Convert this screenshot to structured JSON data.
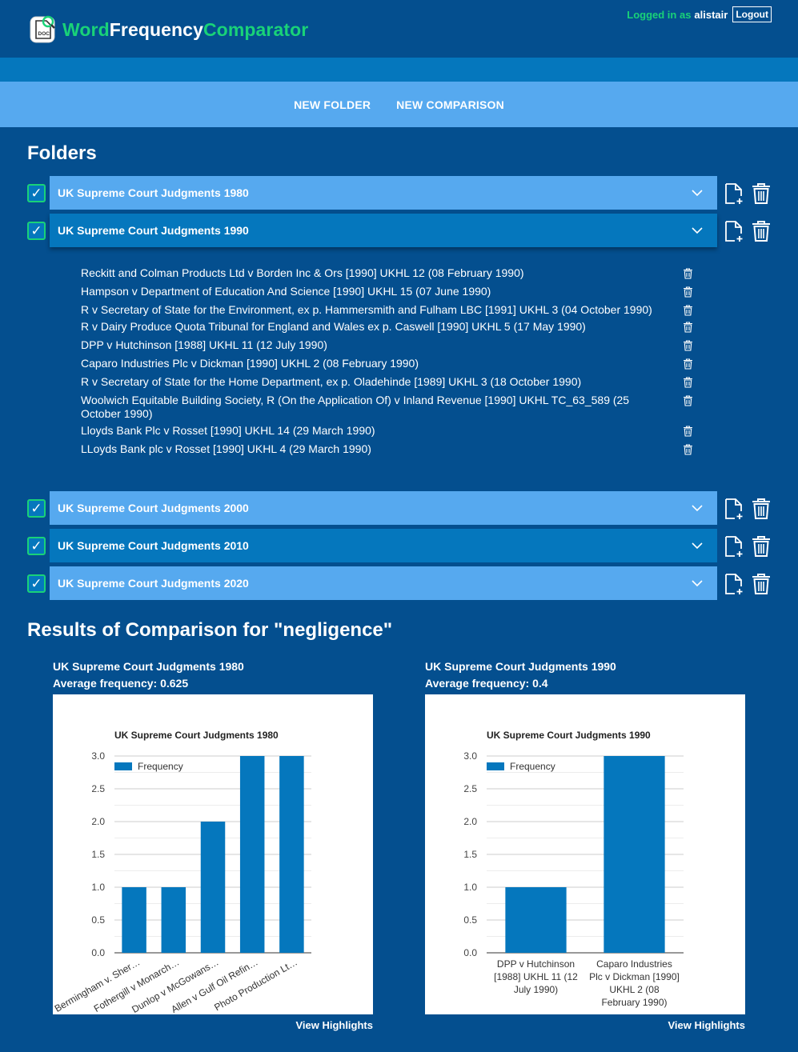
{
  "header": {
    "logo_part1": "Word",
    "logo_part2": "Frequency",
    "logo_part3": "Comparator",
    "logged_in_label": "Logged in as",
    "username": "alistair",
    "logout_label": "Logout",
    "logo_icon": "doc-magnifier-icon"
  },
  "nav": {
    "new_folder": "NEW FOLDER",
    "new_comparison": "NEW COMPARISON"
  },
  "folders_title": "Folders",
  "folders": [
    {
      "name": "UK Supreme Court Judgments 1980",
      "checked": true,
      "expanded": false
    },
    {
      "name": "UK Supreme Court Judgments 1990",
      "checked": true,
      "expanded": true
    },
    {
      "name": "UK Supreme Court Judgments 2000",
      "checked": true,
      "expanded": false
    },
    {
      "name": "UK Supreme Court Judgments 2010",
      "checked": true,
      "expanded": false
    },
    {
      "name": "UK Supreme Court Judgments 2020",
      "checked": true,
      "expanded": false
    }
  ],
  "check_mark": "✓",
  "documents": [
    "Reckitt and Colman Products Ltd v Borden Inc & Ors [1990] UKHL 12 (08 February 1990)",
    "Hampson v Department of Education And Science [1990] UKHL 15 (07 June 1990)",
    "R v Secretary of State for the Environment, ex p. Hammersmith and Fulham LBC [1991] UKHL 3 (04 October 1990)",
    "R v Dairy Produce Quota Tribunal for England and Wales ex p. Caswell [1990] UKHL 5 (17 May 1990)",
    "DPP v Hutchinson [1988] UKHL 11 (12 July 1990)",
    "Caparo Industries Plc v Dickman [1990] UKHL 2 (08 February 1990)",
    "R v Secretary of State for the Home Department, ex p. Oladehinde [1989] UKHL 3 (18 October 1990)",
    "Woolwich Equitable Building Society, R (On the Application Of) v Inland Revenue [1990] UKHL TC_63_589 (25 October 1990)",
    "Lloyds Bank Plc v Rosset [1990] UKHL 14 (29 March 1990)",
    "LLoyds Bank plc v Rosset [1990] UKHL 4 (29 March 1990)"
  ],
  "results_title": "Results of Comparison for \"negligence\"",
  "results": [
    {
      "folder": "UK Supreme Court Judgments 1980",
      "average": "Average frequency: 0.625",
      "view_label": "View Highlights"
    },
    {
      "folder": "UK Supreme Court Judgments 1990",
      "average": "Average frequency: 0.4",
      "view_label": "View Highlights"
    }
  ],
  "colors": {
    "background": "#044f8f",
    "accent_green": "#19d278",
    "folder_bar": "#56a9ef",
    "folder_bar_open": "#0577bd",
    "bar_fill": "#0577bd"
  },
  "chart_data": [
    {
      "type": "bar",
      "title": "UK Supreme Court Judgments 1980",
      "legend": "Frequency",
      "legend_position": "top-left",
      "grid": true,
      "ylim": [
        0,
        3
      ],
      "yticks": [
        "0.0",
        "0.5",
        "1.0",
        "1.5",
        "2.0",
        "2.5",
        "3.0"
      ],
      "categories": [
        "Bermingham v. Sher…",
        "Fothergill v Monarch…",
        "Dunlop v McGowans…",
        "Allen v Gulf Oil Refin…",
        "Photo Production Lt…"
      ],
      "values": [
        1,
        1,
        2,
        3,
        3
      ],
      "label_rotation": -30
    },
    {
      "type": "bar",
      "title": "UK Supreme Court Judgments 1990",
      "legend": "Frequency",
      "legend_position": "top-left",
      "grid": true,
      "ylim": [
        0,
        3
      ],
      "yticks": [
        "0.0",
        "0.5",
        "1.0",
        "1.5",
        "2.0",
        "2.5",
        "3.0"
      ],
      "categories": [
        [
          "DPP v Hutchinson",
          "[1988] UKHL 11 (12",
          "July 1990)"
        ],
        [
          "Caparo Industries",
          "Plc v Dickman [1990]",
          "UKHL 2 (08",
          "February 1990)"
        ]
      ],
      "values": [
        1,
        3
      ],
      "label_rotation": 0
    }
  ]
}
